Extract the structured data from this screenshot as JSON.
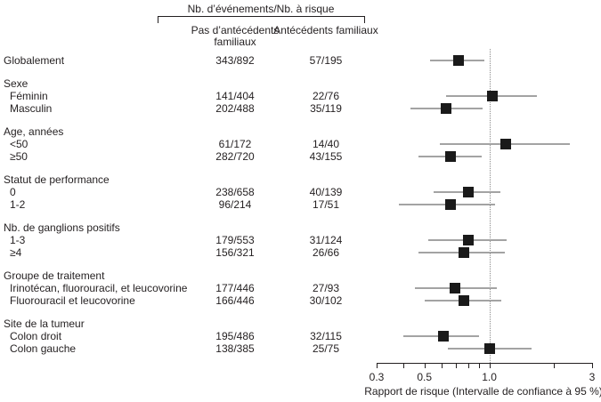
{
  "chart_data": {
    "type": "forest",
    "scale": "log",
    "xlim": [
      0.3,
      3
    ],
    "ticks": [
      0.3,
      0.4,
      0.5,
      0.6,
      0.7,
      0.8,
      0.9,
      1.0,
      2.0,
      3.0
    ],
    "tick_labels": [
      {
        "v": 0.3,
        "t": "0.3"
      },
      {
        "v": 0.5,
        "t": "0.5"
      },
      {
        "v": 1.0,
        "t": "1.0"
      },
      {
        "v": 3.0,
        "t": "3"
      }
    ],
    "reference_line": 1.0,
    "header_title": "Nb. d’événements/Nb. à risque",
    "col_no_history": "Pas d’antécédents familiaux",
    "col_history": "Antécédents familiaux",
    "xlabel": "Rapport de risque (Intervalle de confiance à 95 %)",
    "rows": [
      {
        "type": "overall",
        "label": "Globalement",
        "no_history": "343/892",
        "history": "57/195",
        "hr": 0.72,
        "ci": [
          0.53,
          0.95
        ]
      },
      {
        "type": "group",
        "label": "Sexe"
      },
      {
        "type": "item",
        "label": "Féminin",
        "no_history": "141/404",
        "history": "22/76",
        "hr": 1.03,
        "ci": [
          0.63,
          1.66
        ]
      },
      {
        "type": "item",
        "label": "Masculin",
        "no_history": "202/488",
        "history": "35/119",
        "hr": 0.63,
        "ci": [
          0.43,
          0.93
        ]
      },
      {
        "type": "group",
        "label": "Age, années"
      },
      {
        "type": "item",
        "label": "<50",
        "no_history": "61/172",
        "history": "14/40",
        "hr": 1.19,
        "ci": [
          0.59,
          2.36
        ]
      },
      {
        "type": "item",
        "label": "≥50",
        "no_history": "282/720",
        "history": "43/155",
        "hr": 0.66,
        "ci": [
          0.47,
          0.92
        ]
      },
      {
        "type": "group",
        "label": "Statut de performance"
      },
      {
        "type": "item",
        "label": "0",
        "no_history": "238/658",
        "history": "40/139",
        "hr": 0.8,
        "ci": [
          0.55,
          1.13
        ]
      },
      {
        "type": "item",
        "label": "1-2",
        "no_history": "96/214",
        "history": "17/51",
        "hr": 0.66,
        "ci": [
          0.38,
          1.06
        ]
      },
      {
        "type": "group",
        "label": "Nb. de ganglions positifs"
      },
      {
        "type": "item",
        "label": "1-3",
        "no_history": "179/553",
        "history": "31/124",
        "hr": 0.8,
        "ci": [
          0.52,
          1.2
        ]
      },
      {
        "type": "item",
        "label": "≥4",
        "no_history": "156/321",
        "history": "26/66",
        "hr": 0.76,
        "ci": [
          0.47,
          1.18
        ]
      },
      {
        "type": "group",
        "label": "Groupe de traitement"
      },
      {
        "type": "item",
        "label": "Irinotécan, fluorouracil, et leucovorine",
        "no_history": "177/446",
        "history": "27/93",
        "hr": 0.69,
        "ci": [
          0.45,
          1.08
        ]
      },
      {
        "type": "item",
        "label": "Fluorouracil et leucovorine",
        "no_history": "166/446",
        "history": "30/102",
        "hr": 0.76,
        "ci": [
          0.5,
          1.14
        ]
      },
      {
        "type": "group",
        "label": "Site de la tumeur"
      },
      {
        "type": "item",
        "label": "Colon droit",
        "no_history": "195/486",
        "history": "32/115",
        "hr": 0.61,
        "ci": [
          0.4,
          0.9
        ]
      },
      {
        "type": "item",
        "label": "Colon gauche",
        "no_history": "138/385",
        "history": "25/75",
        "hr": 1.0,
        "ci": [
          0.64,
          1.57
        ]
      }
    ],
    "colors": {
      "marker": "#1a1a1a",
      "ci_line": "#a3a3a3",
      "text": "#231f20",
      "axis": "#231f20",
      "reference_line": "#8a8a8a"
    }
  }
}
